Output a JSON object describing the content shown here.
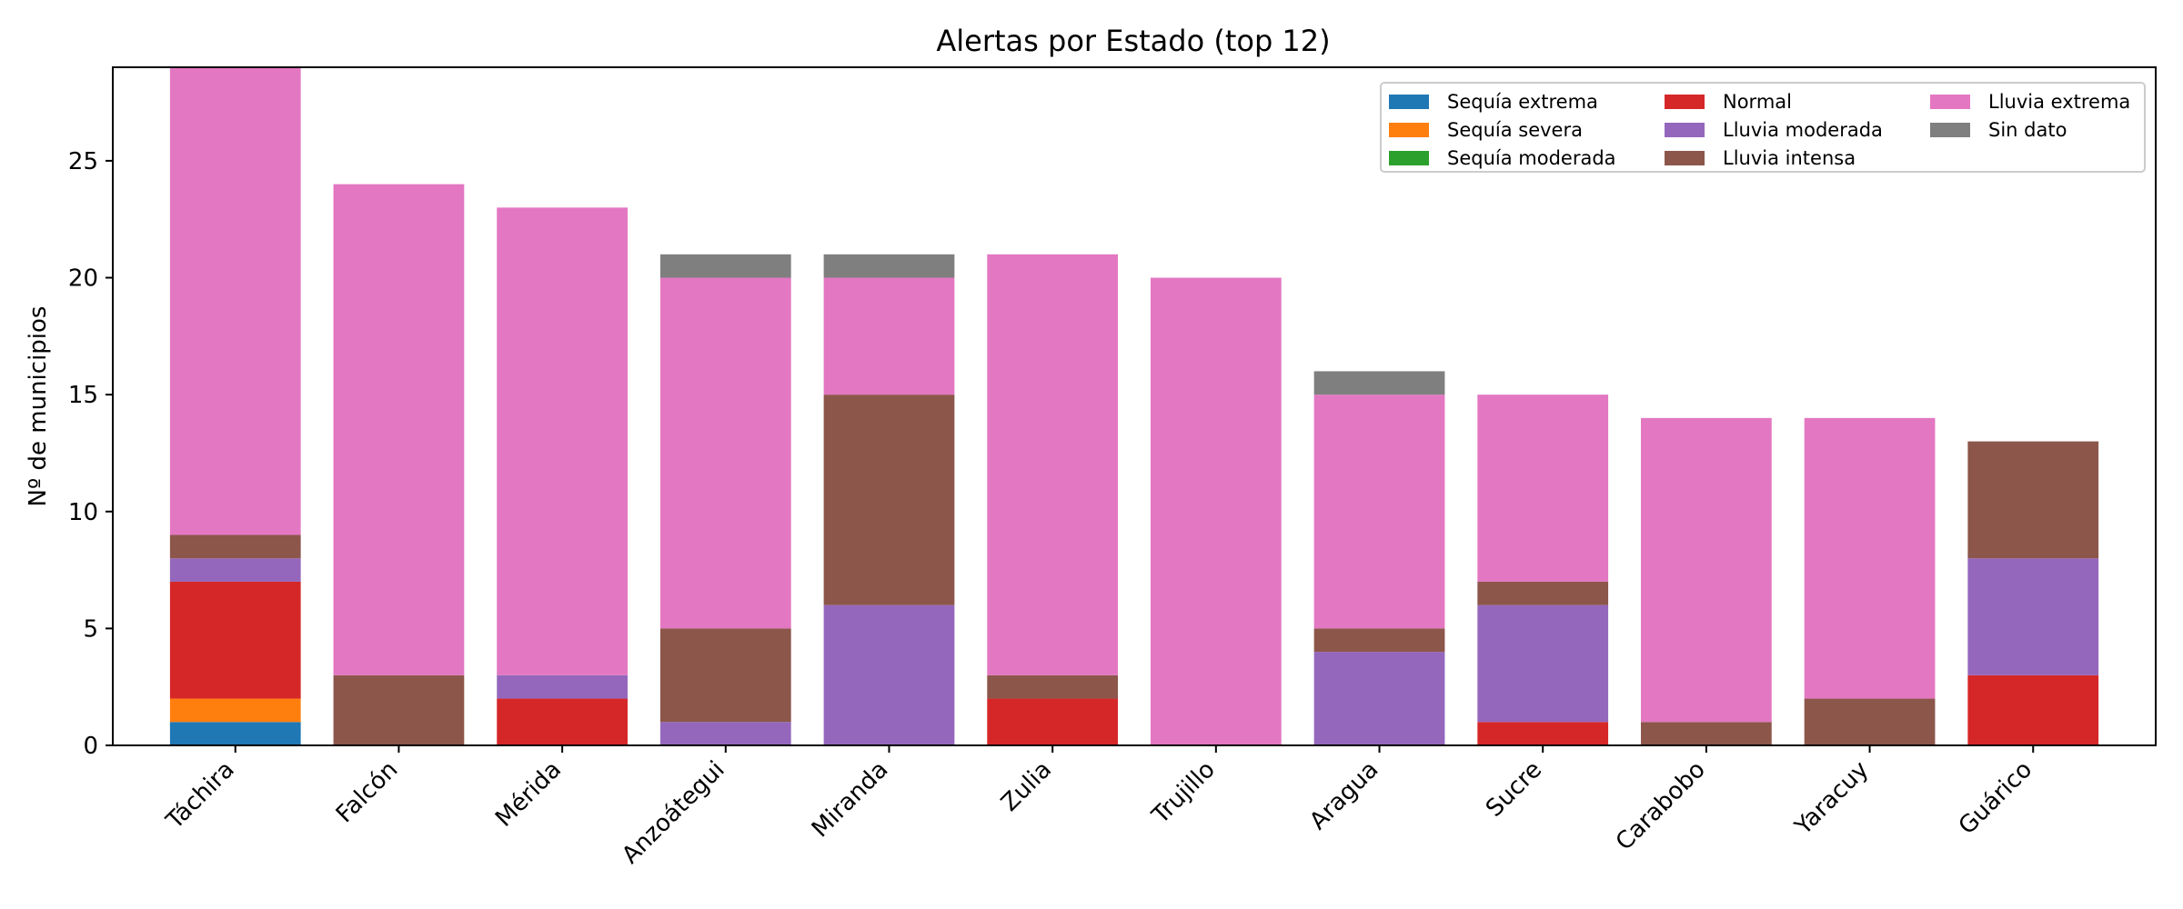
{
  "chart_data": {
    "type": "bar",
    "stacked": true,
    "title": "Alertas por Estado (top 12)",
    "xlabel": "",
    "ylabel": "Nº de municipios",
    "ylim": [
      0,
      29
    ],
    "yticks": [
      0,
      5,
      10,
      15,
      20,
      25
    ],
    "grid": false,
    "legend_position": "top-right",
    "categories": [
      "Táchira",
      "Falcón",
      "Mérida",
      "Anzoátegui",
      "Miranda",
      "Zulia",
      "Trujillo",
      "Aragua",
      "Sucre",
      "Carabobo",
      "Yaracuy",
      "Guárico"
    ],
    "series": [
      {
        "name": "Sequía extrema",
        "color": "#1f77b4",
        "values": [
          1,
          0,
          0,
          0,
          0,
          0,
          0,
          0,
          0,
          0,
          0,
          0
        ]
      },
      {
        "name": "Sequía severa",
        "color": "#ff7f0e",
        "values": [
          1,
          0,
          0,
          0,
          0,
          0,
          0,
          0,
          0,
          0,
          0,
          0
        ]
      },
      {
        "name": "Sequía moderada",
        "color": "#2ca02c",
        "values": [
          0,
          0,
          0,
          0,
          0,
          0,
          0,
          0,
          0,
          0,
          0,
          0
        ]
      },
      {
        "name": "Normal",
        "color": "#d62728",
        "values": [
          5,
          0,
          2,
          0,
          0,
          2,
          0,
          0,
          1,
          0,
          0,
          3
        ]
      },
      {
        "name": "Lluvia moderada",
        "color": "#9467bd",
        "values": [
          1,
          0,
          1,
          1,
          6,
          0,
          0,
          4,
          5,
          0,
          0,
          5
        ]
      },
      {
        "name": "Lluvia intensa",
        "color": "#8c564b",
        "values": [
          1,
          3,
          0,
          4,
          9,
          1,
          0,
          1,
          1,
          1,
          2,
          5
        ]
      },
      {
        "name": "Lluvia extrema",
        "color": "#e377c2",
        "values": [
          20,
          21,
          20,
          15,
          5,
          18,
          20,
          10,
          8,
          13,
          12,
          0
        ]
      },
      {
        "name": "Sin dato",
        "color": "#7f7f7f",
        "values": [
          0,
          0,
          0,
          1,
          1,
          0,
          0,
          1,
          0,
          0,
          0,
          0
        ]
      }
    ]
  }
}
